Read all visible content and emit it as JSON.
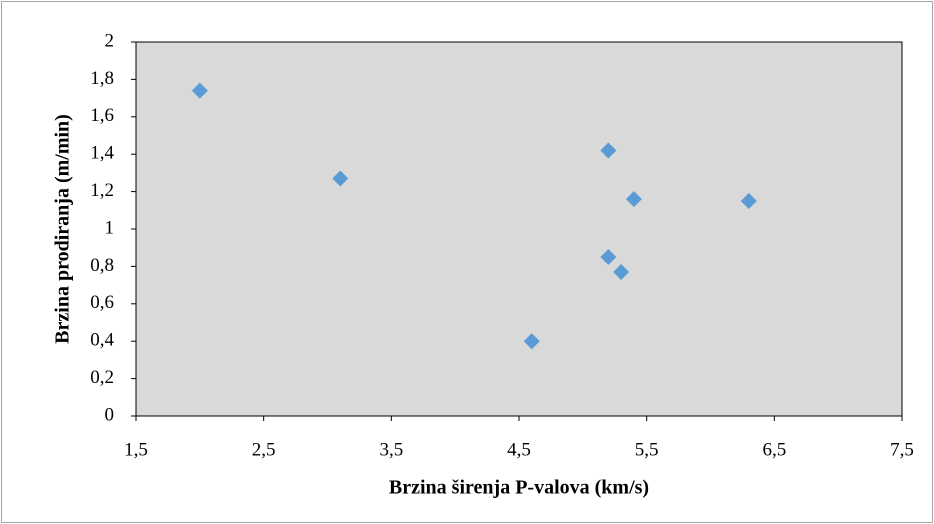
{
  "chart_data": {
    "type": "scatter",
    "x_label": "Brzina širenja P-valova (km/s)",
    "y_label": "Brzina  prodiranja (m/min)",
    "series": [
      {
        "color": "#5b9bd5",
        "x": [
          2.0,
          3.1,
          5.2,
          5.4,
          6.3,
          5.2,
          5.3,
          4.6
        ],
        "values": [
          1.74,
          1.27,
          1.42,
          1.16,
          1.15,
          0.85,
          0.77,
          0.4
        ]
      }
    ],
    "xlim": [
      1.5,
      7.5
    ],
    "xticks": [
      {
        "value": 1.5,
        "label": "1,5"
      },
      {
        "value": 2.5,
        "label": "2,5"
      },
      {
        "value": 3.5,
        "label": "3,5"
      },
      {
        "value": 4.5,
        "label": "4,5"
      },
      {
        "value": 5.5,
        "label": "5,5"
      },
      {
        "value": 6.5,
        "label": "6,5"
      },
      {
        "value": 7.5,
        "label": "7,5"
      }
    ],
    "ylim": [
      0,
      2
    ],
    "yticks": [
      0,
      {
        "value": 0.2,
        "label": "0,2"
      },
      {
        "value": 0.4,
        "label": "0,4"
      },
      {
        "value": 0.6,
        "label": "0,6"
      },
      {
        "value": 0.8,
        "label": "0,8"
      },
      1,
      {
        "value": 1.2,
        "label": "1,2"
      },
      {
        "value": 1.4,
        "label": "1,4"
      },
      {
        "value": 1.6,
        "label": "1,6"
      },
      {
        "value": 1.8,
        "label": "1,8"
      },
      2
    ],
    "plot_background": "#d9d9d9",
    "grid": false
  }
}
